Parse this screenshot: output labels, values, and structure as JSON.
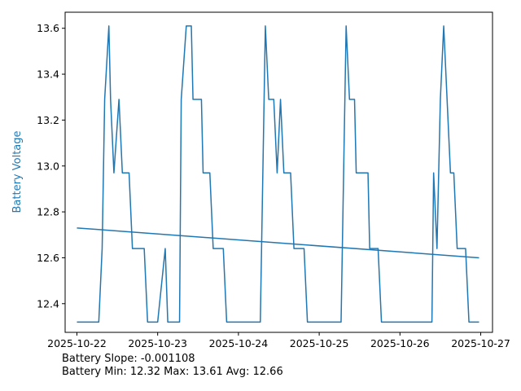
{
  "chart_data": {
    "type": "line",
    "ylabel": "Battery Voltage",
    "xlim": [
      "2025-10-21T20:30",
      "2025-10-27T03:30"
    ],
    "ylim": [
      12.275,
      13.67
    ],
    "x_ticks": [
      "2025-10-22",
      "2025-10-23",
      "2025-10-24",
      "2025-10-25",
      "2025-10-26",
      "2025-10-27"
    ],
    "y_ticks": [
      "12.4",
      "12.6",
      "12.8",
      "13.0",
      "13.2",
      "13.4",
      "13.6"
    ],
    "colors": {
      "series": "#1f77b4",
      "ylabel": "#1f77b4"
    },
    "series": [
      {
        "values": [
          [
            "2025-10-22T00:00",
            12.32
          ],
          [
            "2025-10-22T06:30",
            12.32
          ],
          [
            "2025-10-22T07:30",
            12.64
          ],
          [
            "2025-10-22T08:15",
            13.29
          ],
          [
            "2025-10-22T09:30",
            13.61
          ],
          [
            "2025-10-22T10:00",
            13.29
          ],
          [
            "2025-10-22T11:00",
            12.97
          ],
          [
            "2025-10-22T12:30",
            13.29
          ],
          [
            "2025-10-22T13:30",
            12.97
          ],
          [
            "2025-10-22T15:30",
            12.97
          ],
          [
            "2025-10-22T16:30",
            12.64
          ],
          [
            "2025-10-22T20:00",
            12.64
          ],
          [
            "2025-10-22T21:00",
            12.32
          ],
          [
            "2025-10-23T00:00",
            12.32
          ],
          [
            "2025-10-23T02:15",
            12.64
          ],
          [
            "2025-10-23T03:00",
            12.32
          ],
          [
            "2025-10-23T06:30",
            12.32
          ],
          [
            "2025-10-23T07:00",
            13.29
          ],
          [
            "2025-10-23T08:30",
            13.61
          ],
          [
            "2025-10-23T10:00",
            13.61
          ],
          [
            "2025-10-23T10:30",
            13.29
          ],
          [
            "2025-10-23T13:00",
            13.29
          ],
          [
            "2025-10-23T13:30",
            12.97
          ],
          [
            "2025-10-23T15:30",
            12.97
          ],
          [
            "2025-10-23T16:30",
            12.64
          ],
          [
            "2025-10-23T19:30",
            12.64
          ],
          [
            "2025-10-23T20:30",
            12.32
          ],
          [
            "2025-10-24T06:30",
            12.32
          ],
          [
            "2025-10-24T08:00",
            13.61
          ],
          [
            "2025-10-24T09:00",
            13.29
          ],
          [
            "2025-10-24T10:30",
            13.29
          ],
          [
            "2025-10-24T11:30",
            12.97
          ],
          [
            "2025-10-24T12:30",
            13.29
          ],
          [
            "2025-10-24T13:30",
            12.97
          ],
          [
            "2025-10-24T15:30",
            12.97
          ],
          [
            "2025-10-24T16:30",
            12.64
          ],
          [
            "2025-10-24T19:30",
            12.64
          ],
          [
            "2025-10-24T20:30",
            12.32
          ],
          [
            "2025-10-25T06:30",
            12.32
          ],
          [
            "2025-10-25T08:00",
            13.61
          ],
          [
            "2025-10-25T09:00",
            13.29
          ],
          [
            "2025-10-25T10:30",
            13.29
          ],
          [
            "2025-10-25T11:00",
            12.97
          ],
          [
            "2025-10-25T14:30",
            12.97
          ],
          [
            "2025-10-25T15:00",
            12.64
          ],
          [
            "2025-10-25T17:30",
            12.64
          ],
          [
            "2025-10-25T18:30",
            12.32
          ],
          [
            "2025-10-26T09:30",
            12.32
          ],
          [
            "2025-10-26T10:00",
            12.97
          ],
          [
            "2025-10-26T11:00",
            12.64
          ],
          [
            "2025-10-26T12:00",
            13.29
          ],
          [
            "2025-10-26T13:00",
            13.61
          ],
          [
            "2025-10-26T15:00",
            12.97
          ],
          [
            "2025-10-26T16:00",
            12.97
          ],
          [
            "2025-10-26T17:00",
            12.64
          ],
          [
            "2025-10-26T19:30",
            12.64
          ],
          [
            "2025-10-26T20:30",
            12.32
          ],
          [
            "2025-10-26T23:30",
            12.32
          ]
        ]
      },
      {
        "values": [
          [
            "2025-10-22T00:00",
            12.73
          ],
          [
            "2025-10-26T23:30",
            12.6
          ]
        ]
      }
    ]
  },
  "footer": {
    "slope_text": "Battery Slope: -0.001108",
    "stats_text": "Battery Min: 12.32 Max: 13.61 Avg: 12.66"
  }
}
